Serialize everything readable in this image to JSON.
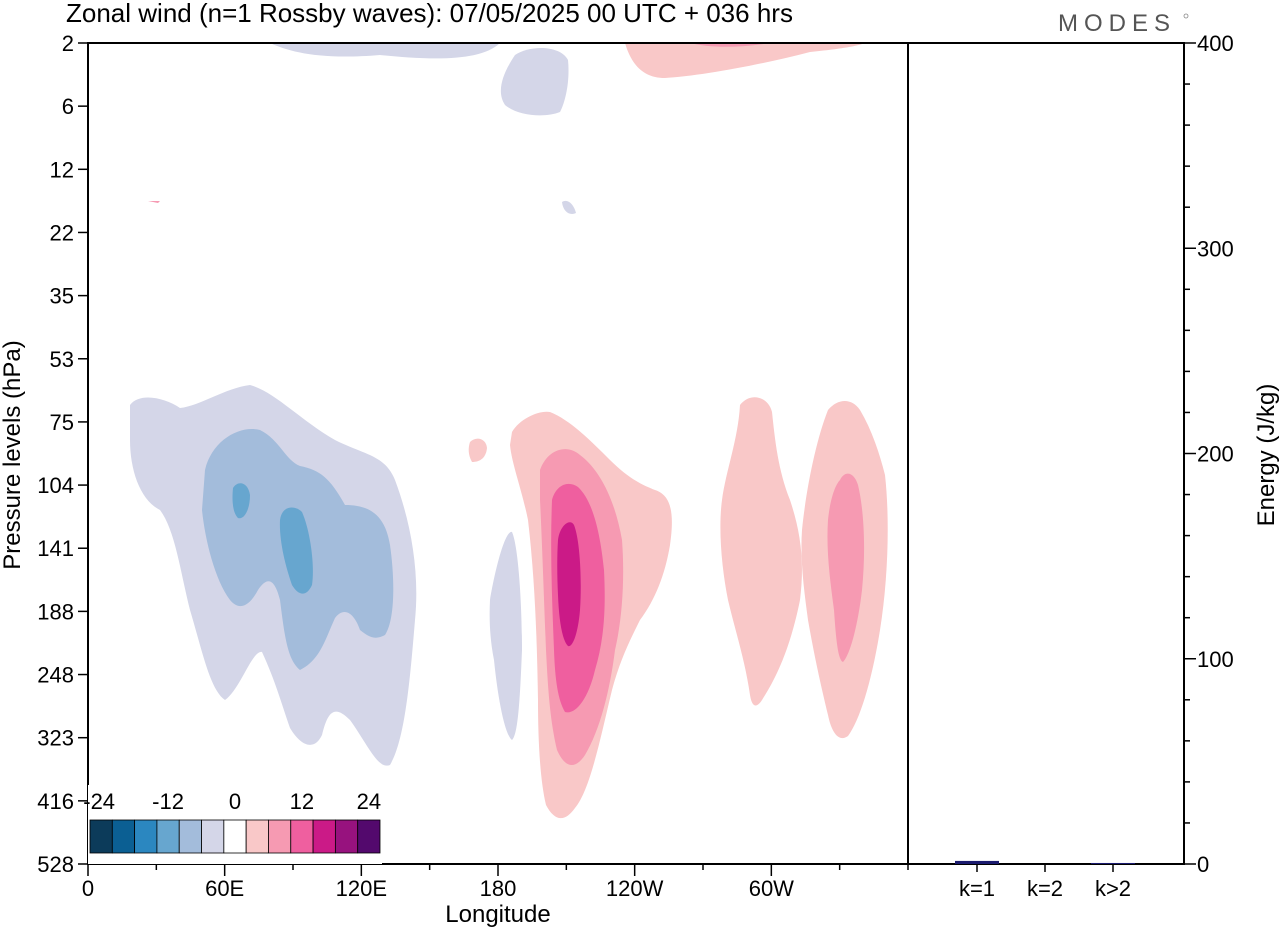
{
  "header": {
    "title": "Zonal wind (n=1 Rossby waves):  07/05/2025  00 UTC  + 036 hrs",
    "brand": "MODES"
  },
  "chart_data": [
    {
      "type": "heatmap",
      "title": "Zonal wind (n=1 Rossby waves):  07/05/2025  00 UTC  + 036 hrs",
      "xlabel": "Longitude",
      "ylabel": "Pressure levels (hPa)",
      "x_ticks": [
        "0",
        "60E",
        "120E",
        "180",
        "120W",
        "60W"
      ],
      "y_ticks": [
        "2",
        "6",
        "12",
        "22",
        "35",
        "53",
        "75",
        "104",
        "141",
        "188",
        "248",
        "323",
        "416",
        "528"
      ],
      "colorbar": {
        "tick_labels": [
          "-24",
          "-12",
          "0",
          "12",
          "24"
        ],
        "colors": [
          "#0c3b5a",
          "#0b5f93",
          "#2b87c0",
          "#67a6cf",
          "#a3bcdb",
          "#d4d6e8",
          "#ffffff",
          "#f9c8c8",
          "#f69ab2",
          "#ef5f9f",
          "#cb1a87",
          "#97127e",
          "#53096d"
        ]
      },
      "contour_fills": [
        {
          "color": "#d4d6e8",
          "value": -6
        },
        {
          "color": "#a3bcdb",
          "value": -10
        },
        {
          "color": "#67a6cf",
          "value": -14
        },
        {
          "color": "#f9c8c8",
          "value": 6
        },
        {
          "color": "#f69ab2",
          "value": 10
        },
        {
          "color": "#ef5f9f",
          "value": 14
        },
        {
          "color": "#cb1a87",
          "value": 18
        }
      ]
    },
    {
      "type": "bar",
      "ylabel": "Energy (J/kg)",
      "categories": [
        "k=1",
        "k=2",
        "k>2"
      ],
      "values": [
        1.5,
        0,
        0.5
      ],
      "ylim": [
        0,
        400
      ],
      "y_ticks": [
        "0",
        "100",
        "200",
        "300",
        "400"
      ],
      "bar_color": "#1a1a6e"
    }
  ]
}
